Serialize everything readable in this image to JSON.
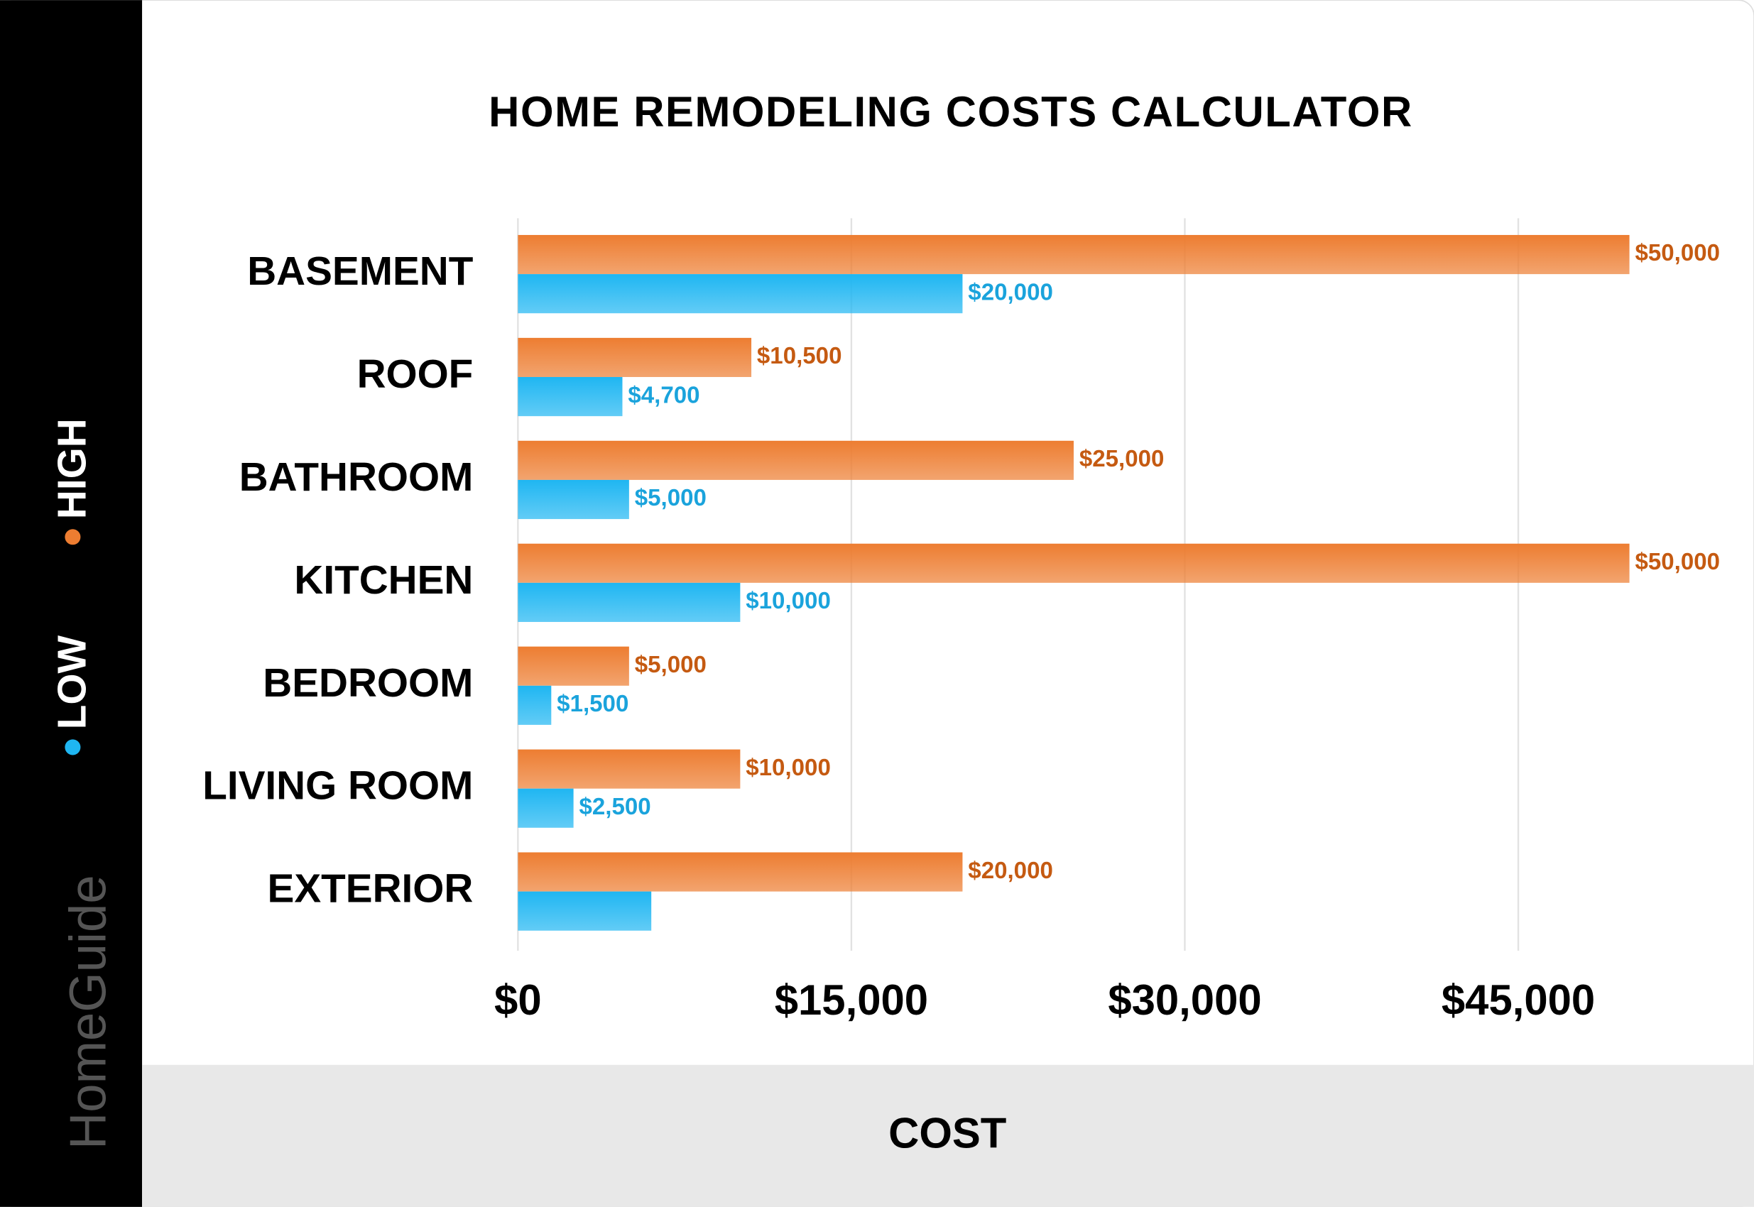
{
  "chart_data": {
    "type": "hbar",
    "title": "HOME REMODELING COSTS CALCULATOR",
    "branding": "HomeGuide",
    "x_label": "COST",
    "categories": [
      "BASEMENT",
      "ROOF",
      "BATHROOM",
      "KITCHEN",
      "BEDROOM",
      "LIVING ROOM",
      "EXTERIOR"
    ],
    "series": [
      {
        "name": "HIGH",
        "color": "#ed7d31",
        "values": [
          50000,
          10500,
          25000,
          50000,
          5000,
          10000,
          20000
        ],
        "value_labels": [
          "$50,000",
          "$10,500",
          "$25,000",
          "$50,000",
          "$5,000",
          "$10,000",
          "$20,000"
        ]
      },
      {
        "name": "LOW",
        "color": "#1fb6f2",
        "values": [
          20000,
          4700,
          5000,
          10000,
          1500,
          2500,
          6000
        ],
        "value_labels": [
          "$20,000",
          "$4,700",
          "$5,000",
          "$10,000",
          "$1,500",
          "$2,500",
          null
        ]
      }
    ],
    "xlim": [
      0,
      55000
    ],
    "xticks": [
      {
        "value": 0,
        "label": "$0"
      },
      {
        "value": 15000,
        "label": "$15,000"
      },
      {
        "value": 30000,
        "label": "$30,000"
      },
      {
        "value": 45000,
        "label": "$45,000"
      }
    ],
    "grid": true
  }
}
